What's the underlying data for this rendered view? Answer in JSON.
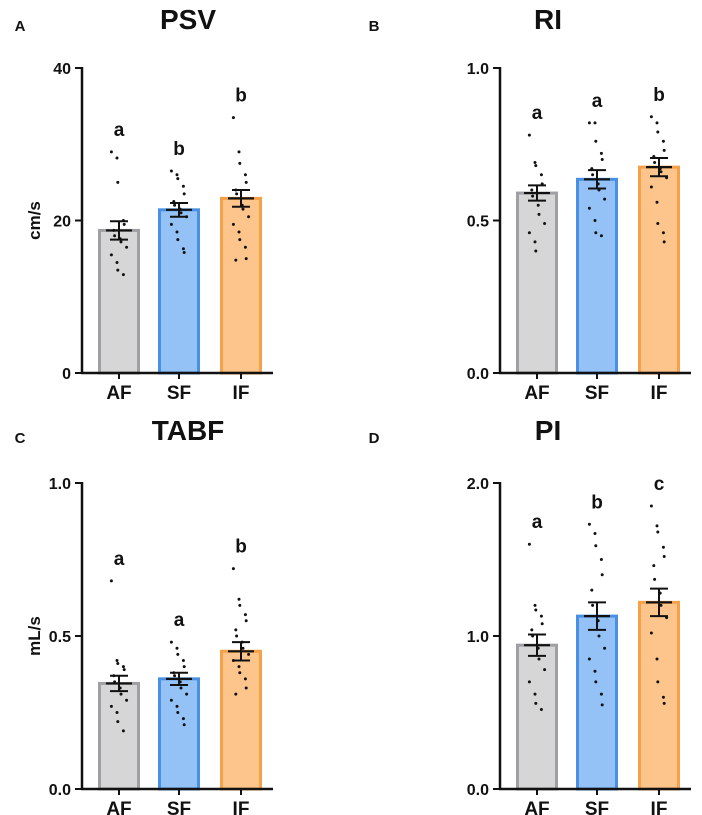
{
  "colors": {
    "AF": {
      "fill": "#d6d6d6",
      "stroke": "#a0a0a4"
    },
    "SF": {
      "fill": "#94c2f6",
      "stroke": "#4a90e2"
    },
    "IF": {
      "fill": "#fdc58c",
      "stroke": "#f5a14a"
    },
    "axis": "#111111",
    "dots": "#111111"
  },
  "chart_data": [
    {
      "type": "bar",
      "panel": "A",
      "title": "PSV",
      "ylabel": "cm/s",
      "categories": [
        "AF",
        "SF",
        "IF"
      ],
      "ylim": [
        0,
        40
      ],
      "yticks": [
        0,
        20,
        40
      ],
      "ytick_labels": [
        "0",
        "20",
        "40"
      ],
      "values": [
        18.7,
        21.4,
        22.9
      ],
      "sem": [
        1.2,
        0.9,
        1.1
      ],
      "letters": [
        "a",
        "b",
        "b"
      ],
      "points": [
        [
          29,
          28.2,
          25,
          20,
          19.5,
          18.7,
          18,
          17.6,
          17.2,
          16.5,
          15.5,
          14.5,
          13.5,
          12.9
        ],
        [
          26.5,
          26,
          25.5,
          24.5,
          23.5,
          22.5,
          22,
          21.5,
          21,
          20.5,
          19.5,
          18.5,
          17.5,
          16.3,
          15.8
        ],
        [
          33.5,
          29,
          27.5,
          26,
          25,
          24,
          23.5,
          22,
          21.5,
          20.5,
          19.5,
          18.5,
          17.5,
          16.5,
          15,
          14.8
        ]
      ]
    },
    {
      "type": "bar",
      "panel": "B",
      "title": "RI",
      "ylabel": "",
      "categories": [
        "AF",
        "SF",
        "IF"
      ],
      "ylim": [
        0,
        1
      ],
      "yticks": [
        0,
        0.5,
        1
      ],
      "ytick_labels": [
        "0.0",
        "0.5",
        "1.0"
      ],
      "values": [
        0.59,
        0.635,
        0.675
      ],
      "sem": [
        0.025,
        0.03,
        0.03
      ],
      "letters": [
        "a",
        "a",
        "b"
      ],
      "points": [
        [
          0.78,
          0.69,
          0.68,
          0.65,
          0.62,
          0.6,
          0.58,
          0.55,
          0.52,
          0.49,
          0.46,
          0.43,
          0.4
        ],
        [
          0.82,
          0.82,
          0.76,
          0.72,
          0.7,
          0.67,
          0.65,
          0.62,
          0.6,
          0.57,
          0.54,
          0.5,
          0.46,
          0.45
        ],
        [
          0.84,
          0.82,
          0.79,
          0.76,
          0.73,
          0.71,
          0.69,
          0.67,
          0.66,
          0.64,
          0.61,
          0.56,
          0.49,
          0.46,
          0.43
        ]
      ]
    },
    {
      "type": "bar",
      "panel": "C",
      "title": "TABF",
      "ylabel": "mL/s",
      "categories": [
        "AF",
        "SF",
        "IF"
      ],
      "ylim": [
        0,
        1
      ],
      "yticks": [
        0,
        0.5,
        1
      ],
      "ytick_labels": [
        "0.0",
        "0.5",
        "1.0"
      ],
      "values": [
        0.345,
        0.36,
        0.45
      ],
      "sem": [
        0.025,
        0.02,
        0.03
      ],
      "letters": [
        "a",
        "a",
        "b"
      ],
      "points": [
        [
          0.68,
          0.42,
          0.41,
          0.4,
          0.39,
          0.37,
          0.35,
          0.33,
          0.31,
          0.29,
          0.27,
          0.25,
          0.22,
          0.19
        ],
        [
          0.48,
          0.46,
          0.44,
          0.42,
          0.4,
          0.38,
          0.37,
          0.35,
          0.33,
          0.31,
          0.29,
          0.27,
          0.25,
          0.23,
          0.21
        ],
        [
          0.72,
          0.62,
          0.6,
          0.57,
          0.55,
          0.52,
          0.5,
          0.48,
          0.46,
          0.44,
          0.42,
          0.4,
          0.38,
          0.36,
          0.33,
          0.31
        ]
      ]
    },
    {
      "type": "bar",
      "panel": "D",
      "title": "PI",
      "ylabel": "",
      "categories": [
        "AF",
        "SF",
        "IF"
      ],
      "ylim": [
        0,
        2
      ],
      "yticks": [
        0,
        1,
        2
      ],
      "ytick_labels": [
        "0.0",
        "1.0",
        "2.0"
      ],
      "values": [
        0.94,
        1.13,
        1.22
      ],
      "sem": [
        0.07,
        0.09,
        0.09
      ],
      "letters": [
        "a",
        "b",
        "c"
      ],
      "points": [
        [
          1.6,
          1.2,
          1.17,
          1.13,
          1.08,
          1.04,
          1.0,
          0.92,
          0.85,
          0.78,
          0.7,
          0.62,
          0.56,
          0.52
        ],
        [
          1.73,
          1.67,
          1.59,
          1.5,
          1.4,
          1.3,
          1.2,
          1.1,
          1.0,
          0.92,
          0.85,
          0.77,
          0.7,
          0.62,
          0.55
        ],
        [
          1.85,
          1.72,
          1.68,
          1.58,
          1.52,
          1.46,
          1.37,
          1.28,
          1.2,
          1.12,
          1.02,
          0.85,
          0.7,
          0.6,
          0.56
        ]
      ]
    }
  ]
}
